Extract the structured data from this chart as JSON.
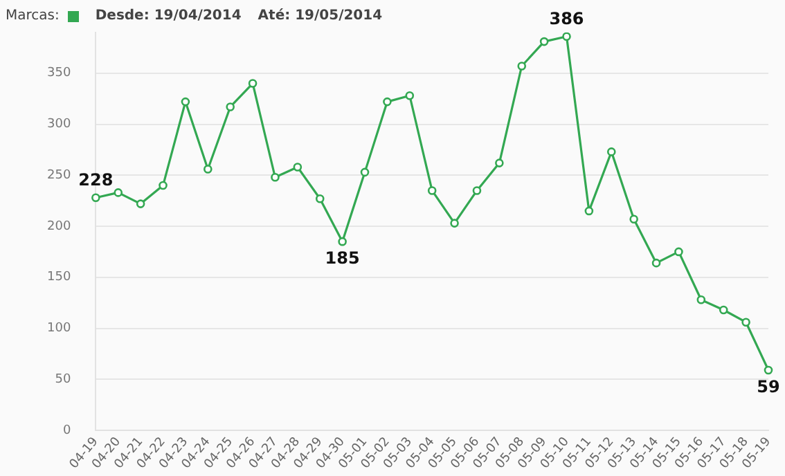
{
  "chart_data": {
    "type": "line",
    "legend_title": "Marcas:",
    "annotations": [
      "Desde: 19/04/2014",
      "Até: 19/05/2014"
    ],
    "categories": [
      "04-19",
      "04-20",
      "04-21",
      "04-22",
      "04-23",
      "04-24",
      "04-25",
      "04-26",
      "04-27",
      "04-28",
      "04-29",
      "04-30",
      "05-01",
      "05-02",
      "05-03",
      "05-04",
      "05-05",
      "05-06",
      "05-07",
      "05-08",
      "05-09",
      "05-10",
      "05-11",
      "05-12",
      "05-13",
      "05-14",
      "05-15",
      "05-16",
      "05-17",
      "05-18",
      "05-19"
    ],
    "series": [
      {
        "color": "#33a852",
        "values": [
          228,
          233,
          222,
          240,
          322,
          256,
          317,
          340,
          248,
          258,
          227,
          185,
          253,
          322,
          328,
          235,
          203,
          235,
          262,
          357,
          381,
          386,
          215,
          273,
          207,
          164,
          175,
          128,
          118,
          106,
          59
        ],
        "value_labels": [
          "228",
          null,
          null,
          null,
          null,
          null,
          null,
          null,
          null,
          null,
          null,
          "185",
          null,
          null,
          null,
          null,
          null,
          null,
          null,
          null,
          null,
          "386",
          null,
          null,
          null,
          null,
          null,
          null,
          null,
          null,
          "59"
        ]
      }
    ],
    "ylim": [
      0,
      390
    ],
    "yticks": [
      0,
      50,
      100,
      150,
      200,
      250,
      300,
      350
    ],
    "grid": "y",
    "marker": "circle",
    "line_style": "solid"
  }
}
